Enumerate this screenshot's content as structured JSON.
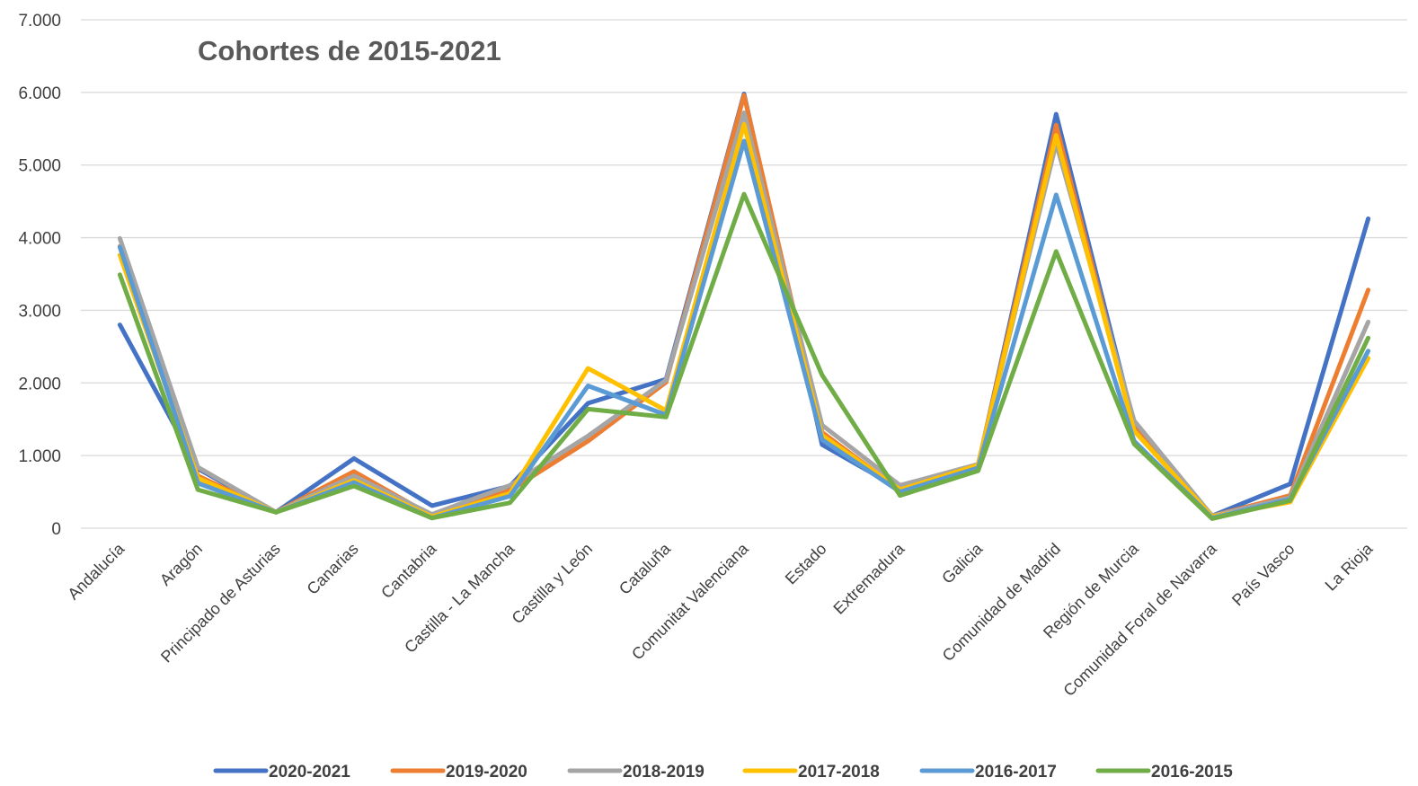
{
  "chart_data": {
    "type": "line",
    "title": "Cohortes de 2015-2021",
    "xlabel": "",
    "ylabel": "",
    "ylim": [
      0,
      7000
    ],
    "y_ticks": [
      0,
      1000,
      2000,
      3000,
      4000,
      5000,
      6000,
      7000
    ],
    "y_tick_labels": [
      "0",
      "1.000",
      "2.000",
      "3.000",
      "4.000",
      "5.000",
      "6.000",
      "7.000"
    ],
    "grid": true,
    "legend_position": "bottom",
    "categories": [
      "Andalucía",
      "Aragón",
      "Principado de Asturias",
      "Canarias",
      "Cantabria",
      "Castilla - La Mancha",
      "Castilla y León",
      "Cataluña",
      "Comunitat Valenciana",
      "Estado",
      "Extremadura",
      "Galicia",
      "Comunidad de Madrid",
      "Región de Murcia",
      "Comunidad Foral de Navarra",
      "País Vasco",
      "La Rioja"
    ],
    "series": [
      {
        "name": "2020-2021",
        "color": "#4472C4",
        "values": [
          2800,
          820,
          220,
          960,
          310,
          580,
          1720,
          2050,
          5980,
          1150,
          540,
          860,
          5700,
          1430,
          170,
          610,
          4260
        ]
      },
      {
        "name": "2019-2020",
        "color": "#ED7D31",
        "values": [
          3880,
          720,
          220,
          780,
          170,
          520,
          1200,
          2010,
          5960,
          1320,
          520,
          870,
          5550,
          1380,
          170,
          450,
          3280
        ]
      },
      {
        "name": "2018-2019",
        "color": "#A5A5A5",
        "values": [
          3990,
          840,
          220,
          720,
          190,
          590,
          1270,
          2040,
          5720,
          1420,
          590,
          880,
          5300,
          1480,
          170,
          420,
          2840
        ]
      },
      {
        "name": "2017-2018",
        "color": "#FFC000",
        "values": [
          3760,
          690,
          220,
          660,
          160,
          480,
          2200,
          1620,
          5560,
          1280,
          530,
          870,
          5410,
          1340,
          160,
          360,
          2340
        ]
      },
      {
        "name": "2016-2017",
        "color": "#5B9BD5",
        "values": [
          3870,
          620,
          220,
          630,
          140,
          440,
          1960,
          1560,
          5330,
          1220,
          500,
          830,
          4590,
          1200,
          140,
          400,
          2440
        ]
      },
      {
        "name": "2016-2015",
        "color": "#70AD47",
        "values": [
          3490,
          530,
          220,
          580,
          140,
          350,
          1640,
          1530,
          4600,
          2110,
          450,
          790,
          3810,
          1160,
          130,
          380,
          2620
        ]
      }
    ]
  }
}
